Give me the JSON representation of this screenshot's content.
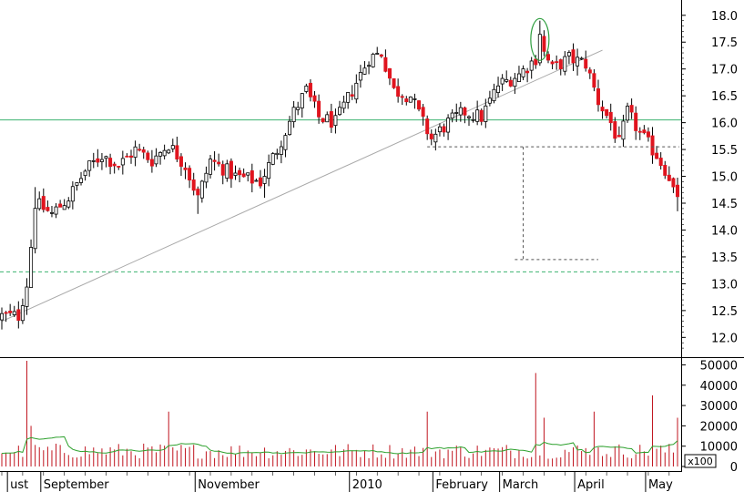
{
  "chart_data": [
    {
      "type": "candlestick",
      "panel": "price",
      "y_axis_side": "right",
      "ylim": [
        11.7,
        18.2
      ],
      "y_ticks": [
        "12.0",
        "12.5",
        "13.0",
        "13.5",
        "14.0",
        "14.5",
        "15.0",
        "15.5",
        "16.0",
        "16.5",
        "17.0",
        "17.5",
        "18.0"
      ],
      "grid": false,
      "candle_colors": {
        "up": "#ffffff",
        "down": "#e0141e",
        "outline": "#000000"
      },
      "anchors": [
        {
          "day": 0,
          "value": 12.4
        },
        {
          "day": 4,
          "value": 12.4
        },
        {
          "day": 6,
          "value": 13.0
        },
        {
          "day": 7,
          "value": 13.7
        },
        {
          "day": 8,
          "value": 14.5
        },
        {
          "day": 12,
          "value": 14.3
        },
        {
          "day": 16,
          "value": 14.6
        },
        {
          "day": 20,
          "value": 15.1
        },
        {
          "day": 24,
          "value": 15.4
        },
        {
          "day": 28,
          "value": 15.2
        },
        {
          "day": 32,
          "value": 15.5
        },
        {
          "day": 36,
          "value": 15.3
        },
        {
          "day": 40,
          "value": 15.6
        },
        {
          "day": 44,
          "value": 15.2
        },
        {
          "day": 47,
          "value": 14.6
        },
        {
          "day": 50,
          "value": 15.3
        },
        {
          "day": 56,
          "value": 15.0
        },
        {
          "day": 62,
          "value": 14.9
        },
        {
          "day": 66,
          "value": 15.5
        },
        {
          "day": 70,
          "value": 16.2
        },
        {
          "day": 73,
          "value": 16.6
        },
        {
          "day": 76,
          "value": 16.1
        },
        {
          "day": 80,
          "value": 16.0
        },
        {
          "day": 84,
          "value": 16.6
        },
        {
          "day": 88,
          "value": 17.2
        },
        {
          "day": 91,
          "value": 17.3
        },
        {
          "day": 94,
          "value": 16.6
        },
        {
          "day": 98,
          "value": 16.5
        },
        {
          "day": 101,
          "value": 16.0
        },
        {
          "day": 103,
          "value": 15.7
        },
        {
          "day": 107,
          "value": 16.0
        },
        {
          "day": 111,
          "value": 16.2
        },
        {
          "day": 115,
          "value": 16.1
        },
        {
          "day": 119,
          "value": 16.7
        },
        {
          "day": 124,
          "value": 16.9
        },
        {
          "day": 128,
          "value": 17.2
        },
        {
          "day": 129,
          "value": 17.7
        },
        {
          "day": 130,
          "value": 17.3
        },
        {
          "day": 132,
          "value": 17.0
        },
        {
          "day": 136,
          "value": 17.2
        },
        {
          "day": 140,
          "value": 17.1
        },
        {
          "day": 143,
          "value": 16.4
        },
        {
          "day": 146,
          "value": 16.0
        },
        {
          "day": 148,
          "value": 15.6
        },
        {
          "day": 150,
          "value": 16.2
        },
        {
          "day": 153,
          "value": 15.8
        },
        {
          "day": 157,
          "value": 15.4
        },
        {
          "day": 160,
          "value": 15.0
        },
        {
          "day": 162,
          "value": 14.5
        }
      ],
      "overlays": {
        "resistance_line": {
          "value": 16.05,
          "color": "#3cb371"
        },
        "support_line_dashed": {
          "value": 13.22,
          "color": "#3cb371"
        },
        "trendline": {
          "from": {
            "day": 0,
            "value": 12.3
          },
          "to": {
            "day": 144,
            "value": 17.35
          },
          "color": "#a8a8a8"
        },
        "neckline_dashed": {
          "from_day": 102,
          "value": 15.55
        },
        "target_dashed": {
          "from_day": 123,
          "to_day": 143,
          "value": 13.45
        },
        "measured_move": {
          "day": 125,
          "top": 15.55,
          "bottom": 13.45
        },
        "highlight_ellipse": {
          "day": 129,
          "value": 17.55,
          "color": "#2e9e3e"
        }
      }
    },
    {
      "type": "bar",
      "panel": "volume",
      "y_axis_side": "right",
      "ylim": [
        0,
        52000
      ],
      "y_ticks": [
        "0",
        "10000",
        "20000",
        "30000",
        "40000",
        "50000"
      ],
      "unit_label": "x100",
      "bar_color": "#c0141e",
      "moving_average_color": "#2ca02c",
      "baseline_volume": 8500,
      "spikes": [
        {
          "day": 6,
          "volume": 52000
        },
        {
          "day": 7,
          "volume": 20000
        },
        {
          "day": 40,
          "volume": 27000
        },
        {
          "day": 102,
          "volume": 27000
        },
        {
          "day": 128,
          "volume": 46000
        },
        {
          "day": 130,
          "volume": 24000
        },
        {
          "day": 142,
          "volume": 27000
        },
        {
          "day": 156,
          "volume": 35000
        },
        {
          "day": 162,
          "volume": 24000
        }
      ]
    }
  ],
  "x_axis": {
    "months": [
      {
        "label": "ust",
        "day": 2
      },
      {
        "label": "September",
        "day": 10
      },
      {
        "label": "November",
        "day": 47
      },
      {
        "label": "2010",
        "day": 84
      },
      {
        "label": "February",
        "day": 104
      },
      {
        "label": "March",
        "day": 120
      },
      {
        "label": "April",
        "day": 138
      },
      {
        "label": "May",
        "day": 155
      }
    ],
    "total_days": 163
  }
}
